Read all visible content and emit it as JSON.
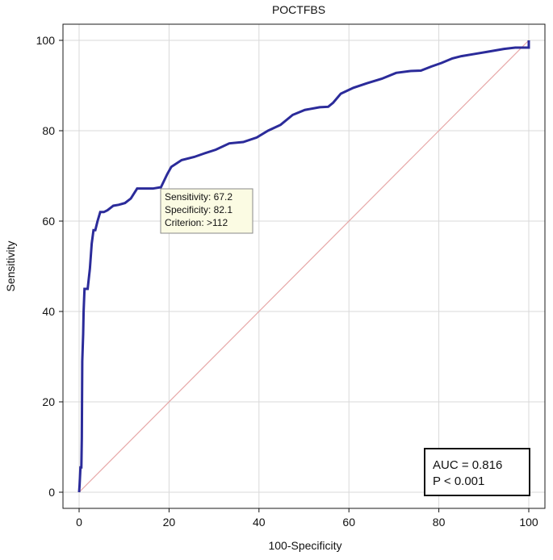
{
  "chart_data": {
    "type": "line",
    "title": "POCTFBS",
    "xlabel": "100-Specificity",
    "ylabel": "Sensitivity",
    "xlim": [
      0,
      100
    ],
    "ylim": [
      0,
      100
    ],
    "xticks": [
      0,
      20,
      40,
      60,
      80,
      100
    ],
    "yticks": [
      0,
      20,
      40,
      60,
      80,
      100
    ],
    "grid": true,
    "series": [
      {
        "color": "#2b2b9a",
        "x": [
          0,
          0.1,
          0.3,
          0.5,
          0.6,
          0.7,
          0.9,
          1.0,
          1.2,
          1.5,
          1.9,
          2.4,
          2.8,
          3.2,
          3.6,
          4.1,
          4.7,
          5.5,
          6.3,
          7.6,
          8.8,
          10.2,
          11.5,
          12.9,
          13.9,
          16.4,
          18.2,
          19.6,
          20.5,
          22.8,
          25.6,
          27.9,
          30.4,
          33.4,
          36.5,
          39.5,
          42.0,
          44.8,
          47.5,
          50.2,
          53.5,
          55.4,
          56.5,
          58.2,
          61.0,
          64.0,
          67.3,
          70.5,
          73.5,
          76.0,
          78.3,
          80.6,
          83.0,
          85.0,
          88.0,
          91.0,
          94.5,
          97.0,
          99.0,
          100,
          100
        ],
        "y": [
          0,
          1.5,
          5.5,
          5.5,
          12,
          29,
          35,
          40,
          45,
          45,
          45,
          49.5,
          55,
          58,
          58,
          60,
          62,
          62,
          62.4,
          63.4,
          63.6,
          64.0,
          65.0,
          67.2,
          67.2,
          67.2,
          67.5,
          70.4,
          72.0,
          73.5,
          74.2,
          75.0,
          75.8,
          77.2,
          77.5,
          78.5,
          80.0,
          81.3,
          83.5,
          84.6,
          85.2,
          85.3,
          86.2,
          88.2,
          89.5,
          90.5,
          91.5,
          92.8,
          93.2,
          93.3,
          94.2,
          95.0,
          96.0,
          96.5,
          97.0,
          97.5,
          98.1,
          98.4,
          98.4,
          98.4,
          100
        ]
      },
      {
        "color": "#e7a8a8",
        "x": [
          0,
          100
        ],
        "y": [
          0,
          100
        ]
      }
    ],
    "annotations": {
      "callout": {
        "lines": [
          "Sensitivity: 67.2",
          "Specificity: 82.1",
          "Criterion: >112"
        ],
        "x": 17.9,
        "y": 67.2
      },
      "stats": {
        "lines": [
          "AUC = 0.816",
          "P < 0.001"
        ],
        "placement": "bottom-right"
      }
    }
  }
}
